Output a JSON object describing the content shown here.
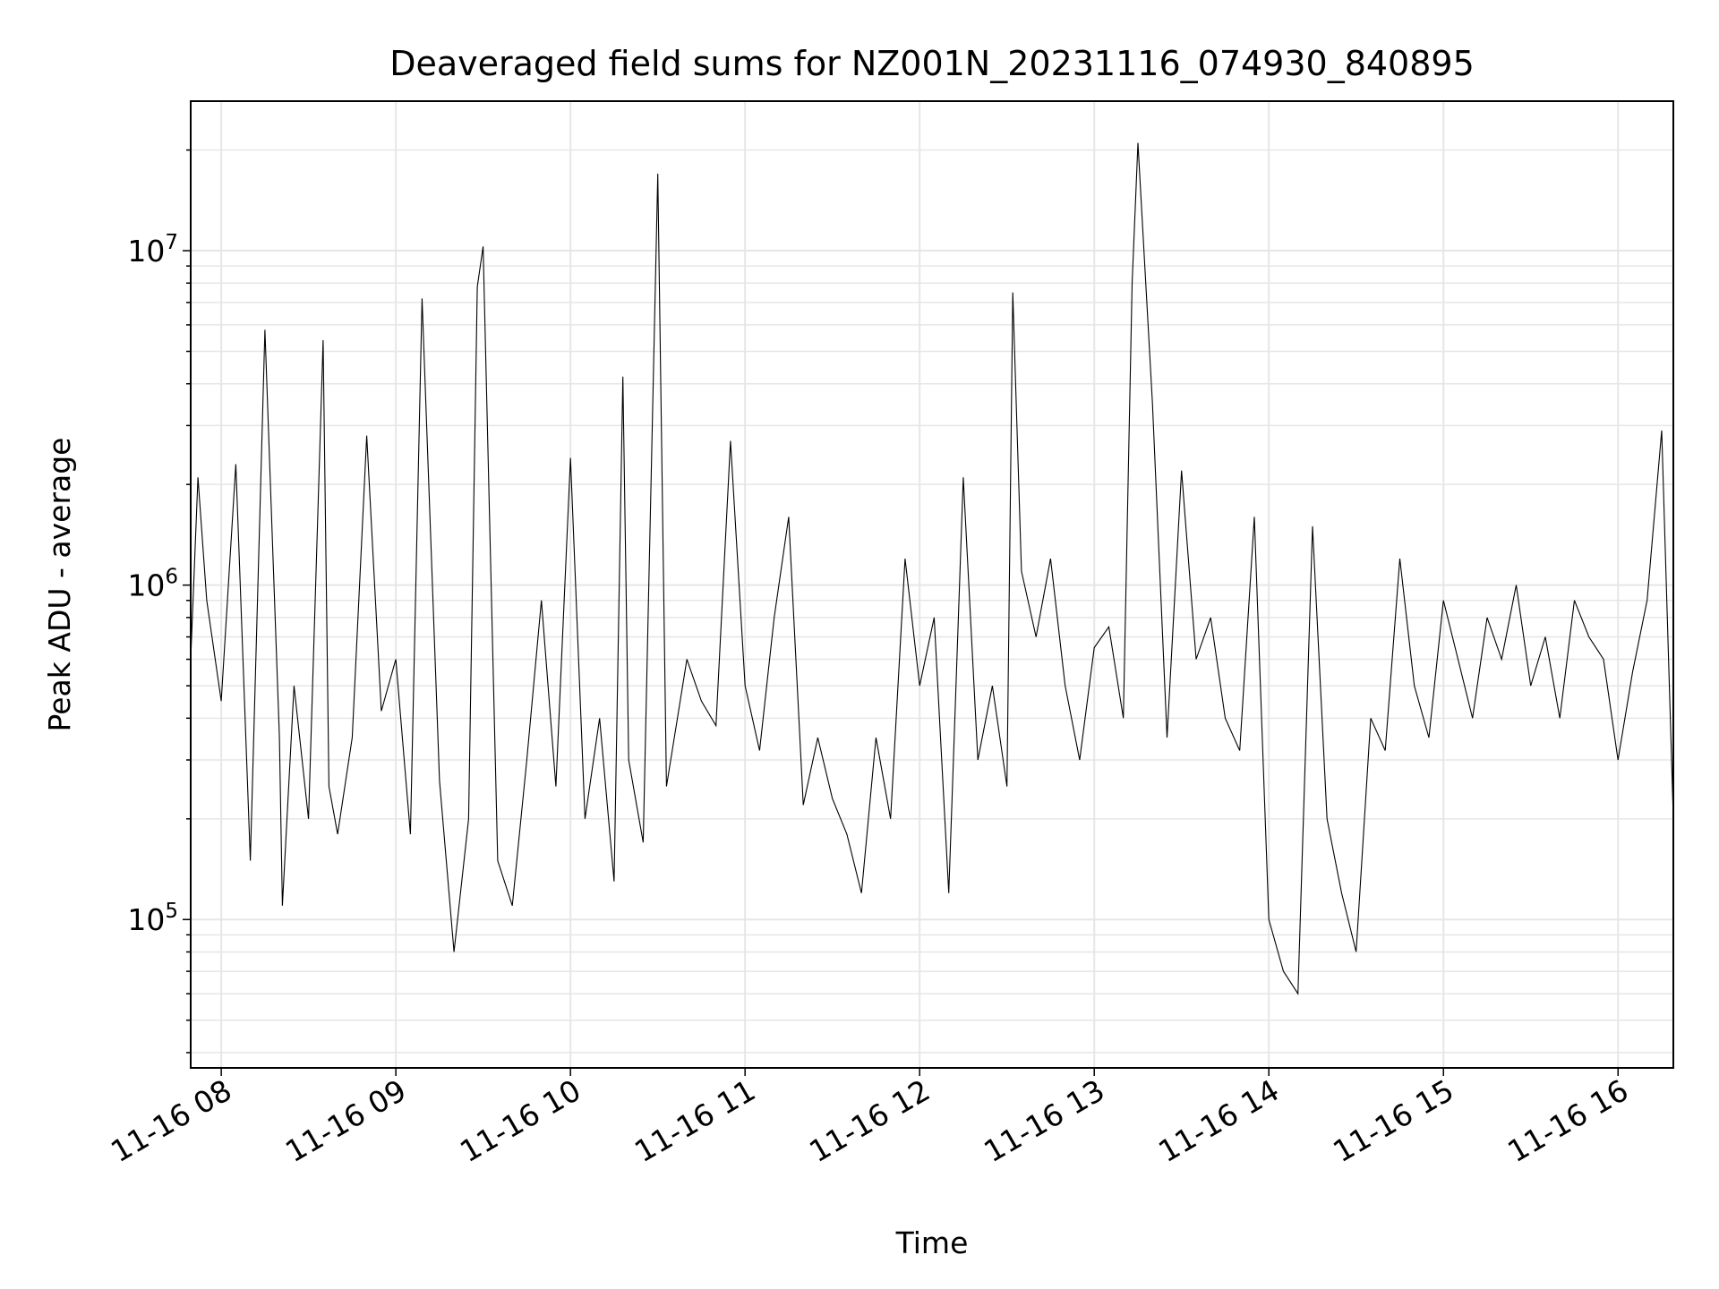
{
  "chart_data": {
    "type": "line",
    "title": "Deaveraged field sums for NZ001N_20231116_074930_840895",
    "xlabel": "Time",
    "ylabel": "Peak ADU - average",
    "y_scale": "log",
    "ylim": [
      36000,
      28000000
    ],
    "x_range": [
      "2023-11-16T07:49:30",
      "2023-11-16T16:19:00"
    ],
    "x_ticks": [
      "11-16 08",
      "11-16 09",
      "11-16 10",
      "11-16 11",
      "11-16 12",
      "11-16 13",
      "11-16 14",
      "11-16 15",
      "11-16 16"
    ],
    "y_ticks": [
      {
        "value": 100000,
        "base": "10",
        "exp": "5"
      },
      {
        "value": 1000000,
        "base": "10",
        "exp": "6"
      },
      {
        "value": 10000000,
        "base": "10",
        "exp": "7"
      }
    ],
    "grid": true,
    "line_color": "#000000",
    "series": [
      {
        "x": [
          "2023-11-16T07:49:30",
          "2023-11-16T07:52",
          "2023-11-16T07:55",
          "2023-11-16T08:00",
          "2023-11-16T08:05",
          "2023-11-16T08:10",
          "2023-11-16T08:15",
          "2023-11-16T08:20",
          "2023-11-16T08:21",
          "2023-11-16T08:25",
          "2023-11-16T08:30",
          "2023-11-16T08:35",
          "2023-11-16T08:37",
          "2023-11-16T08:40",
          "2023-11-16T08:45",
          "2023-11-16T08:50",
          "2023-11-16T08:55",
          "2023-11-16T09:00",
          "2023-11-16T09:05",
          "2023-11-16T09:09",
          "2023-11-16T09:15",
          "2023-11-16T09:20",
          "2023-11-16T09:25",
          "2023-11-16T09:28",
          "2023-11-16T09:30",
          "2023-11-16T09:35",
          "2023-11-16T09:40",
          "2023-11-16T09:45",
          "2023-11-16T09:50",
          "2023-11-16T09:55",
          "2023-11-16T10:00",
          "2023-11-16T10:05",
          "2023-11-16T10:10",
          "2023-11-16T10:15",
          "2023-11-16T10:18",
          "2023-11-16T10:20",
          "2023-11-16T10:25",
          "2023-11-16T10:30",
          "2023-11-16T10:33",
          "2023-11-16T10:40",
          "2023-11-16T10:45",
          "2023-11-16T10:50",
          "2023-11-16T10:55",
          "2023-11-16T11:00",
          "2023-11-16T11:05",
          "2023-11-16T11:10",
          "2023-11-16T11:15",
          "2023-11-16T11:20",
          "2023-11-16T11:25",
          "2023-11-16T11:30",
          "2023-11-16T11:35",
          "2023-11-16T11:40",
          "2023-11-16T11:45",
          "2023-11-16T11:50",
          "2023-11-16T11:55",
          "2023-11-16T12:00",
          "2023-11-16T12:05",
          "2023-11-16T12:10",
          "2023-11-16T12:15",
          "2023-11-16T12:20",
          "2023-11-16T12:25",
          "2023-11-16T12:30",
          "2023-11-16T12:32",
          "2023-11-16T12:35",
          "2023-11-16T12:40",
          "2023-11-16T12:45",
          "2023-11-16T12:50",
          "2023-11-16T12:55",
          "2023-11-16T13:00",
          "2023-11-16T13:05",
          "2023-11-16T13:10",
          "2023-11-16T13:13",
          "2023-11-16T13:15",
          "2023-11-16T13:20",
          "2023-11-16T13:25",
          "2023-11-16T13:30",
          "2023-11-16T13:35",
          "2023-11-16T13:40",
          "2023-11-16T13:45",
          "2023-11-16T13:50",
          "2023-11-16T13:55",
          "2023-11-16T14:00",
          "2023-11-16T14:05",
          "2023-11-16T14:10",
          "2023-11-16T14:15",
          "2023-11-16T14:20",
          "2023-11-16T14:25",
          "2023-11-16T14:30",
          "2023-11-16T14:35",
          "2023-11-16T14:40",
          "2023-11-16T14:45",
          "2023-11-16T14:50",
          "2023-11-16T14:55",
          "2023-11-16T15:00",
          "2023-11-16T15:05",
          "2023-11-16T15:10",
          "2023-11-16T15:15",
          "2023-11-16T15:20",
          "2023-11-16T15:25",
          "2023-11-16T15:30",
          "2023-11-16T15:35",
          "2023-11-16T15:40",
          "2023-11-16T15:45",
          "2023-11-16T15:50",
          "2023-11-16T15:55",
          "2023-11-16T16:00",
          "2023-11-16T16:05",
          "2023-11-16T16:10",
          "2023-11-16T16:15",
          "2023-11-16T16:19"
        ],
        "y": [
          600000,
          2100000,
          900000,
          450000,
          2300000,
          150000,
          5800000,
          350000,
          110000,
          500000,
          200000,
          5400000,
          250000,
          180000,
          350000,
          2800000,
          420000,
          600000,
          180000,
          7200000,
          260000,
          80000,
          200000,
          7800000,
          10300000,
          150000,
          110000,
          300000,
          900000,
          250000,
          2400000,
          200000,
          400000,
          130000,
          4200000,
          300000,
          170000,
          17000000,
          250000,
          600000,
          450000,
          380000,
          2700000,
          500000,
          320000,
          800000,
          1600000,
          220000,
          350000,
          230000,
          180000,
          120000,
          350000,
          200000,
          1200000,
          500000,
          800000,
          120000,
          2100000,
          300000,
          500000,
          250000,
          7500000,
          1100000,
          700000,
          1200000,
          500000,
          300000,
          650000,
          750000,
          400000,
          8000000,
          21000000,
          3500000,
          350000,
          2200000,
          600000,
          800000,
          400000,
          320000,
          1600000,
          100000,
          70000,
          60000,
          1500000,
          200000,
          120000,
          80000,
          400000,
          320000,
          1200000,
          500000,
          350000,
          900000,
          600000,
          400000,
          800000,
          600000,
          1000000,
          500000,
          700000,
          400000,
          900000,
          700000,
          600000,
          300000,
          550000,
          900000,
          2900000,
          200000
        ]
      }
    ]
  }
}
